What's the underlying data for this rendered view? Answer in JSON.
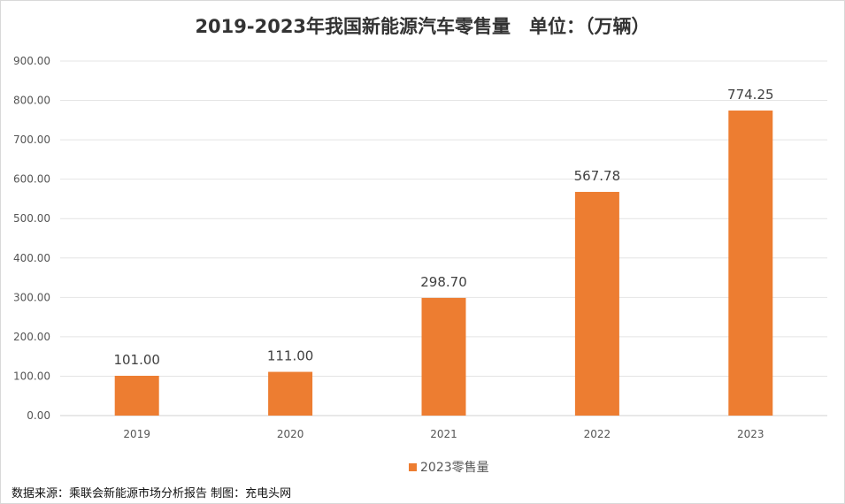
{
  "chart_data": {
    "type": "bar",
    "title": "2019-2023年我国新能源汽车零售量　单位：（万辆）",
    "categories": [
      "2019",
      "2020",
      "2021",
      "2022",
      "2023"
    ],
    "series": [
      {
        "name": "2023零售量",
        "values": [
          101.0,
          111.0,
          298.7,
          567.78,
          774.25
        ],
        "color": "#ed7d31"
      }
    ],
    "data_labels": [
      "101.00",
      "111.00",
      "298.70",
      "567.78",
      "774.25"
    ],
    "yticks": [
      "0.00",
      "100.00",
      "200.00",
      "300.00",
      "400.00",
      "500.00",
      "600.00",
      "700.00",
      "800.00",
      "900.00"
    ],
    "ylim": [
      0,
      900
    ],
    "grid": true,
    "legend": "bottom",
    "xlabel": "",
    "ylabel": ""
  },
  "source": "数据来源：乘联会新能源市场分析报告  制图：充电头网"
}
